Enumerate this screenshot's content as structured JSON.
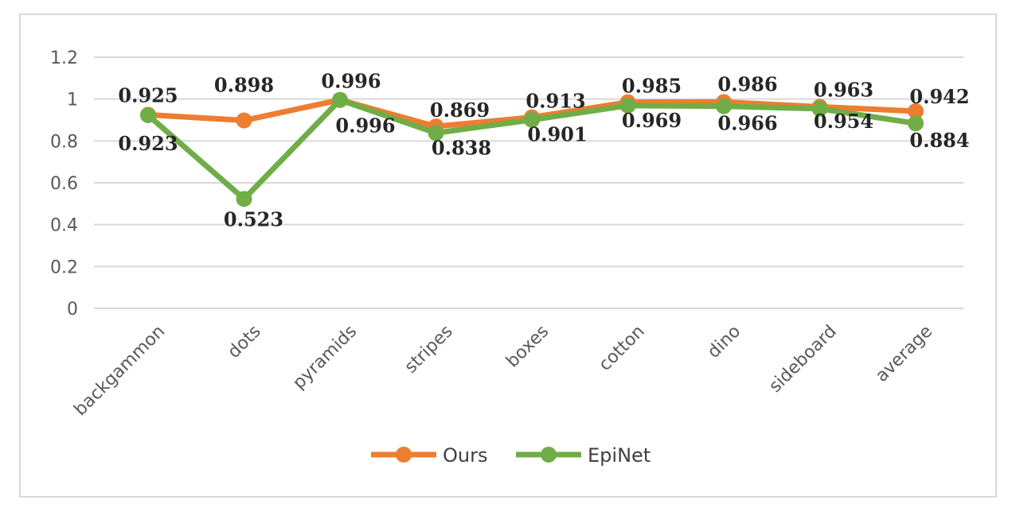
{
  "chart_data": {
    "type": "line",
    "categories": [
      "backgammon",
      "dots",
      "pyramids",
      "stripes",
      "boxes",
      "cotton",
      "dino",
      "sideboard",
      "average"
    ],
    "series": [
      {
        "name": "Ours",
        "color": "#ED7D31",
        "values": [
          0.925,
          0.898,
          0.996,
          0.869,
          0.913,
          0.985,
          0.986,
          0.963,
          0.942
        ]
      },
      {
        "name": "EpiNet",
        "color": "#70AD47",
        "values": [
          0.923,
          0.523,
          0.996,
          0.838,
          0.901,
          0.969,
          0.966,
          0.954,
          0.884
        ]
      }
    ],
    "ylim": [
      0,
      1.2
    ],
    "yticks": [
      "0",
      "0.2",
      "0.4",
      "0.6",
      "0.8",
      "1",
      "1.2"
    ],
    "grid": true,
    "legend_position": "bottom",
    "data_labels": {
      "Ours": [
        "0.925",
        "0.898",
        "0.996",
        "0.869",
        "0.913",
        "0.985",
        "0.986",
        "0.963",
        "0.942"
      ],
      "EpiNet": [
        "0.923",
        "0.523",
        "0.996",
        "0.838",
        "0.901",
        "0.969",
        "0.966",
        "0.954",
        "0.884"
      ]
    }
  }
}
